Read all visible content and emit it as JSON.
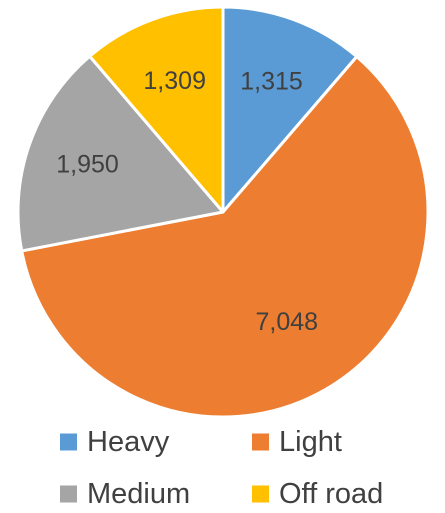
{
  "chart_data": {
    "type": "pie",
    "categories": [
      "Heavy",
      "Light",
      "Medium",
      "Off road"
    ],
    "values": [
      1315,
      7048,
      1950,
      1309
    ],
    "value_labels": [
      "1,315",
      "7,048",
      "1,950",
      "1,309"
    ],
    "colors": [
      "#5b9bd5",
      "#ed7d31",
      "#a5a5a5",
      "#ffc000"
    ],
    "start_angle": "12 o'clock",
    "direction": "clockwise",
    "legend_position": "bottom",
    "title": ""
  }
}
